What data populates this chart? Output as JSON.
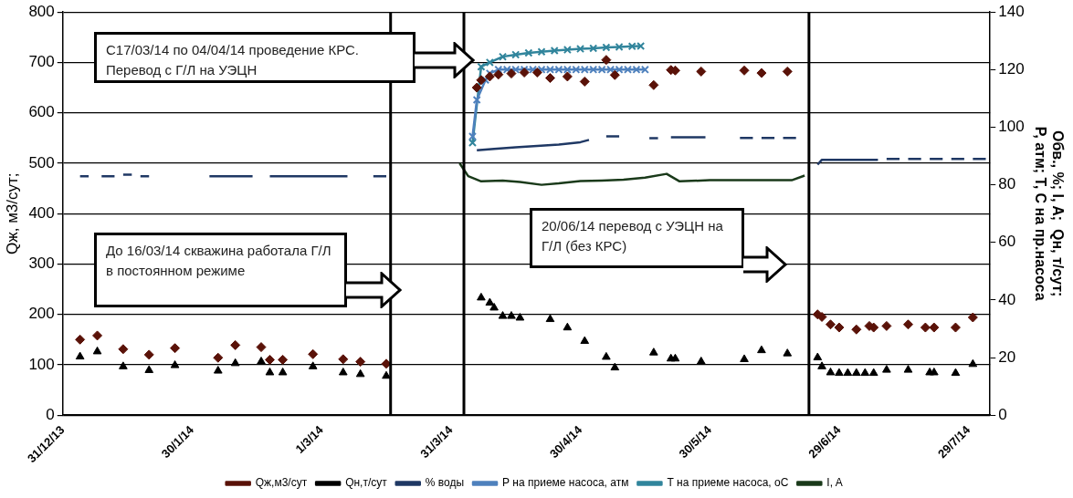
{
  "chart_data": {
    "type": "line",
    "ylabel": "Qж, м3/сут;",
    "y2label": "Обв., %; I, A;  Qн, т/сут;\nР, атм; Т, С на пр.насоса",
    "xlim": [
      "2013-12-31",
      "2014-08-03"
    ],
    "xticks": [
      {
        "value": "2013-12-31",
        "label": "31/12/13"
      },
      {
        "value": "2014-01-30",
        "label": "30/1/14"
      },
      {
        "value": "2014-03-01",
        "label": "1/3/14"
      },
      {
        "value": "2014-03-31",
        "label": "31/3/14"
      },
      {
        "value": "2014-04-30",
        "label": "30/4/14"
      },
      {
        "value": "2014-05-30",
        "label": "30/5/14"
      },
      {
        "value": "2014-06-29",
        "label": "29/6/14"
      },
      {
        "value": "2014-07-29",
        "label": "29/7/14"
      }
    ],
    "ylim": [
      0,
      800
    ],
    "yticks": [
      0,
      100,
      200,
      300,
      400,
      500,
      600,
      700,
      800
    ],
    "y2lim": [
      0,
      140
    ],
    "y2ticks": [
      0,
      20,
      40,
      60,
      80,
      100,
      120,
      140
    ],
    "grid": "y",
    "legend": "bottom",
    "series": [
      {
        "name": "Qж,м3/сут",
        "type": "scatter",
        "marker": "diamond",
        "color": "#5a1208",
        "x": [
          "2014-01-04",
          "2014-01-08",
          "2014-01-14",
          "2014-01-20",
          "2014-01-26",
          "2014-02-05",
          "2014-02-09",
          "2014-02-15",
          "2014-02-17",
          "2014-02-20",
          "2014-02-27",
          "2014-03-06",
          "2014-03-10",
          "2014-03-16",
          "2014-04-06",
          "2014-04-07",
          "2014-04-09",
          "2014-04-11",
          "2014-04-14",
          "2014-04-17",
          "2014-04-20",
          "2014-04-23",
          "2014-04-27",
          "2014-05-01",
          "2014-05-06",
          "2014-05-08",
          "2014-05-17",
          "2014-05-21",
          "2014-05-22",
          "2014-05-28",
          "2014-06-07",
          "2014-06-11",
          "2014-06-17",
          "2014-06-24",
          "2014-06-25",
          "2014-06-27",
          "2014-06-29",
          "2014-07-03",
          "2014-07-06",
          "2014-07-07",
          "2014-07-10",
          "2014-07-15",
          "2014-07-19",
          "2014-07-21",
          "2014-07-26",
          "2014-07-30"
        ],
        "values": [
          150,
          158,
          131,
          120,
          133,
          114,
          139,
          135,
          110,
          110,
          121,
          111,
          106,
          102,
          650,
          665,
          672,
          676,
          678,
          680,
          680,
          669,
          672,
          662,
          705,
          675,
          655,
          685,
          684,
          682,
          684,
          679,
          682,
          200,
          195,
          180,
          174,
          170,
          177,
          174,
          177,
          180,
          174,
          174,
          174,
          194
        ]
      },
      {
        "name": "Qн,т/сут",
        "type": "scatter",
        "marker": "triangle",
        "axis": "y2",
        "color": "#000000",
        "x": [
          "2014-01-04",
          "2014-01-08",
          "2014-01-14",
          "2014-01-20",
          "2014-01-26",
          "2014-02-05",
          "2014-02-09",
          "2014-02-15",
          "2014-02-17",
          "2014-02-20",
          "2014-02-27",
          "2014-03-06",
          "2014-03-10",
          "2014-03-16",
          "2014-04-07",
          "2014-04-09",
          "2014-04-10",
          "2014-04-12",
          "2014-04-14",
          "2014-04-16",
          "2014-04-23",
          "2014-04-27",
          "2014-05-01",
          "2014-05-06",
          "2014-05-08",
          "2014-05-17",
          "2014-05-21",
          "2014-05-22",
          "2014-05-28",
          "2014-06-07",
          "2014-06-11",
          "2014-06-17",
          "2014-06-24",
          "2014-06-25",
          "2014-06-27",
          "2014-06-29",
          "2014-07-01",
          "2014-07-03",
          "2014-07-05",
          "2014-07-07",
          "2014-07-10",
          "2014-07-15",
          "2014-07-20",
          "2014-07-21",
          "2014-07-26",
          "2014-07-30"
        ],
        "values": [
          20.3,
          22.1,
          16.9,
          15.6,
          17.3,
          15.4,
          18,
          18.6,
          14.8,
          14.8,
          16.9,
          14.8,
          14.2,
          13.6,
          40.8,
          39,
          37.3,
          34.4,
          34.4,
          33.8,
          33.3,
          30.4,
          25.7,
          20.2,
          16.5,
          21.7,
          19.6,
          19.6,
          18.6,
          19.4,
          22.5,
          21.4,
          20,
          16.9,
          14.8,
          14.6,
          14.6,
          14.6,
          14.6,
          14.6,
          15.7,
          15.7,
          14.8,
          14.8,
          14.6,
          17.7
        ]
      },
      {
        "name": "% воды",
        "marker": "none",
        "axis": "y2",
        "color": "#1f3864",
        "x": [
          "2014-01-04",
          "2014-01-06",
          "2014-01-07",
          "2014-01-09",
          "2014-01-12",
          "2014-01-13",
          "2014-01-14",
          "2014-01-16",
          "2014-01-17",
          "2014-01-18",
          "2014-01-20",
          "2014-01-25",
          "2014-02-03",
          "2014-02-13",
          "2014-02-15",
          "2014-02-17",
          "2014-03-07",
          "2014-03-09",
          "2014-03-13",
          "2014-03-16",
          "2014-03-25",
          "2014-04-06",
          "2014-04-10",
          "2014-04-15",
          "2014-04-20",
          "2014-04-25",
          "2014-04-30",
          "2014-05-02",
          "2014-05-04",
          "2014-05-06",
          "2014-05-09",
          "2014-05-13",
          "2014-05-16",
          "2014-05-18",
          "2014-05-19",
          "2014-05-21",
          "2014-05-29",
          "2014-06-03",
          "2014-06-06",
          "2014-06-09",
          "2014-06-10",
          "2014-06-11",
          "2014-06-14",
          "2014-06-15",
          "2014-06-16",
          "2014-06-19",
          "2014-06-21",
          "2014-06-24",
          "2014-06-25",
          "2014-07-08",
          "2014-07-09",
          "2014-07-10",
          "2014-07-13",
          "2014-07-14",
          "2014-07-15",
          "2014-07-18",
          "2014-07-19",
          "2014-07-20",
          "2014-07-23",
          "2014-07-24",
          "2014-07-25",
          "2014-07-28",
          "2014-07-29",
          "2014-07-30",
          "2014-08-02"
        ],
        "values": [
          83,
          83,
          null,
          83,
          83,
          null,
          83.5,
          83.5,
          null,
          83,
          83,
          null,
          83,
          83,
          null,
          83,
          83,
          null,
          83,
          83,
          null,
          92,
          92.5,
          93,
          93.5,
          94,
          94.8,
          95.6,
          null,
          96.8,
          96.8,
          null,
          96.2,
          96.2,
          null,
          96.5,
          96.5,
          null,
          96.3,
          96.3,
          null,
          96.3,
          96.3,
          null,
          96.3,
          96.3,
          null,
          87,
          88.7,
          88.7,
          null,
          89,
          89,
          null,
          89,
          89,
          null,
          89,
          89,
          null,
          89,
          89,
          null,
          89,
          89
        ]
      },
      {
        "name": "Р на приеме насоса, атм",
        "marker": "cross",
        "axis": "y2",
        "color": "#4f81bd",
        "x": [
          "2014-04-05",
          "2014-04-06",
          "2014-04-08",
          "2014-04-09",
          "2014-04-11",
          "2014-04-13",
          "2014-04-15",
          "2014-04-17",
          "2014-04-19",
          "2014-04-21",
          "2014-04-23",
          "2014-04-25",
          "2014-04-27",
          "2014-04-29",
          "2014-05-01",
          "2014-05-03",
          "2014-05-05",
          "2014-05-07",
          "2014-05-09",
          "2014-05-11",
          "2014-05-13",
          "2014-05-15"
        ],
        "values": [
          96.8,
          109.5,
          116.4,
          118.7,
          120,
          120,
          120,
          120,
          120,
          120,
          120,
          120,
          120,
          120,
          120,
          120,
          120,
          120,
          120,
          120,
          120,
          120
        ]
      },
      {
        "name": "Т на приеме насоса, оС",
        "marker": "cross",
        "axis": "y2",
        "color": "#31859c",
        "x": [
          "2014-04-05",
          "2014-04-07",
          "2014-04-09",
          "2014-04-12",
          "2014-04-15",
          "2014-04-18",
          "2014-04-21",
          "2014-04-24",
          "2014-04-27",
          "2014-04-30",
          "2014-05-03",
          "2014-05-06",
          "2014-05-09",
          "2014-05-12",
          "2014-05-14"
        ],
        "values": [
          94.6,
          121,
          122.5,
          124.5,
          125.2,
          125.8,
          126.2,
          126.6,
          126.9,
          127.2,
          127.4,
          127.7,
          127.9,
          128.1,
          128.2
        ]
      },
      {
        "name": "I, A",
        "marker": "none",
        "axis": "y2",
        "color": "#1a3a1a",
        "x": [
          "2014-04-02",
          "2014-04-04",
          "2014-04-07",
          "2014-04-12",
          "2014-04-16",
          "2014-04-21",
          "2014-04-25",
          "2014-04-30",
          "2014-05-05",
          "2014-05-10",
          "2014-05-15",
          "2014-05-20",
          "2014-05-23",
          "2014-05-30",
          "2014-06-09",
          "2014-06-18",
          "2014-06-21"
        ],
        "values": [
          87.5,
          83,
          81.2,
          81.5,
          81,
          80,
          80.5,
          81.3,
          81.5,
          81.8,
          82.5,
          83.8,
          81.2,
          81.6,
          81.6,
          81.6,
          83.2
        ]
      }
    ],
    "ref_lines": [
      {
        "axis": "x",
        "value": "2014-03-17",
        "color": "#000000"
      },
      {
        "axis": "x",
        "value": "2014-04-03",
        "color": "#000000"
      },
      {
        "axis": "x",
        "value": "2014-06-22",
        "color": "#000000"
      }
    ],
    "annotations": [
      "С17/03/14 по 04/04/14 проведение КРС. Перевод с Г/Л на УЭЦН",
      "До 16/03/14 скважина работала Г/Л в постоянном режиме",
      "20/06/14 перевод с УЭЦН на Г/Л (без КРС)"
    ]
  }
}
